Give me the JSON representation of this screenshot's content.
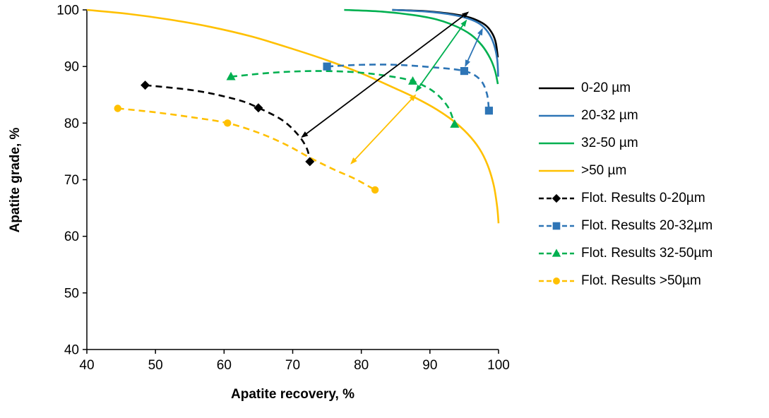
{
  "chart_data": {
    "type": "line",
    "xlabel": "Apatite recovery, %",
    "ylabel": "Apatite grade, %",
    "xlim": [
      40,
      100
    ],
    "ylim": [
      40,
      100
    ],
    "xticks": [
      40,
      50,
      60,
      70,
      80,
      90,
      100
    ],
    "yticks": [
      40,
      50,
      60,
      70,
      80,
      90,
      100
    ],
    "grid": false,
    "legend_position": "right",
    "series": [
      {
        "name": "0-20 µm",
        "color": "#000000",
        "line_style": "solid",
        "marker": "none",
        "points": [
          [
            84.5,
            100
          ],
          [
            89,
            99.8
          ],
          [
            92.5,
            99.4
          ],
          [
            95,
            98.9
          ],
          [
            96.8,
            98.2
          ],
          [
            98.2,
            97.2
          ],
          [
            99.1,
            95.8
          ],
          [
            99.6,
            94.2
          ],
          [
            99.9,
            91.6
          ]
        ]
      },
      {
        "name": "20-32 µm",
        "color": "#2E75B6",
        "line_style": "solid",
        "marker": "none",
        "points": [
          [
            84.5,
            100
          ],
          [
            89.5,
            99.7
          ],
          [
            93,
            99.2
          ],
          [
            95.5,
            98.5
          ],
          [
            97.3,
            97.5
          ],
          [
            98.5,
            96.0
          ],
          [
            99.3,
            94.0
          ],
          [
            99.8,
            91.3
          ],
          [
            99.95,
            88.2
          ]
        ]
      },
      {
        "name": "32-50 µm",
        "color": "#00B050",
        "line_style": "solid",
        "marker": "none",
        "points": [
          [
            77.5,
            100
          ],
          [
            83,
            99.7
          ],
          [
            87.5,
            99.1
          ],
          [
            91,
            98.3
          ],
          [
            93.8,
            97.1
          ],
          [
            96,
            95.6
          ],
          [
            97.6,
            93.7
          ],
          [
            98.8,
            91.4
          ],
          [
            99.5,
            89.2
          ],
          [
            99.9,
            86.9
          ]
        ]
      },
      {
        "name": ">50 µm",
        "color": "#FFC000",
        "line_style": "solid",
        "marker": "none",
        "points": [
          [
            40,
            100
          ],
          [
            46,
            99.3
          ],
          [
            52,
            98.3
          ],
          [
            58,
            97.0
          ],
          [
            64,
            95.3
          ],
          [
            70,
            93.1
          ],
          [
            75,
            91.1
          ],
          [
            80,
            88.8
          ],
          [
            85,
            86.1
          ],
          [
            88,
            84.4
          ],
          [
            91,
            82.4
          ],
          [
            93.5,
            80.3
          ],
          [
            95.5,
            78.1
          ],
          [
            97.2,
            75.5
          ],
          [
            98.4,
            72.6
          ],
          [
            99.3,
            69.0
          ],
          [
            99.8,
            65.2
          ],
          [
            100,
            62.3
          ]
        ]
      },
      {
        "name": "Flot. Results 0-20µm",
        "color": "#000000",
        "line_style": "dashed",
        "marker": "diamond",
        "points": [
          [
            48.5,
            86.7
          ],
          [
            56,
            85.7
          ],
          [
            62,
            84.1
          ],
          [
            65,
            82.7
          ],
          [
            68.5,
            80.5
          ],
          [
            70.8,
            77.9
          ],
          [
            72.1,
            75.4
          ],
          [
            72.5,
            73.2
          ]
        ],
        "marker_points": [
          [
            48.5,
            86.7
          ],
          [
            65,
            82.7
          ],
          [
            72.5,
            73.2
          ]
        ]
      },
      {
        "name": "Flot. Results 20-32µm",
        "color": "#2E75B6",
        "line_style": "dashed",
        "marker": "square",
        "points": [
          [
            75,
            90.0
          ],
          [
            80,
            90.3
          ],
          [
            85,
            90.3
          ],
          [
            90,
            89.9
          ],
          [
            95,
            89.2
          ],
          [
            97.3,
            87.7
          ],
          [
            98.3,
            85.2
          ],
          [
            98.6,
            82.2
          ]
        ],
        "marker_points": [
          [
            75,
            90.0
          ],
          [
            95,
            89.2
          ],
          [
            98.6,
            82.2
          ]
        ]
      },
      {
        "name": "Flot. Results 32-50µm",
        "color": "#00B050",
        "line_style": "dashed",
        "marker": "triangle",
        "points": [
          [
            61,
            88.2
          ],
          [
            67,
            88.9
          ],
          [
            73,
            89.2
          ],
          [
            79,
            89.0
          ],
          [
            84,
            88.3
          ],
          [
            87.5,
            87.4
          ],
          [
            90.5,
            85.6
          ],
          [
            92.6,
            82.9
          ],
          [
            93.6,
            79.8
          ]
        ],
        "marker_points": [
          [
            61,
            88.2
          ],
          [
            87.5,
            87.4
          ],
          [
            93.6,
            79.8
          ]
        ]
      },
      {
        "name": "Flot. Results >50µm",
        "color": "#FFC000",
        "line_style": "dashed",
        "marker": "circle",
        "points": [
          [
            44.5,
            82.6
          ],
          [
            50,
            81.9
          ],
          [
            55.5,
            81.0
          ],
          [
            60.5,
            80.0
          ],
          [
            65,
            78.3
          ],
          [
            69,
            76.2
          ],
          [
            72.5,
            73.9
          ],
          [
            76,
            71.8
          ],
          [
            79,
            70.2
          ],
          [
            82,
            68.2
          ]
        ],
        "marker_points": [
          [
            44.5,
            82.6
          ],
          [
            60.5,
            80.0
          ],
          [
            82,
            68.2
          ]
        ]
      }
    ],
    "arrows": [
      {
        "color": "#000000",
        "from": [
          71.2,
          77.4
        ],
        "to": [
          95.7,
          99.7
        ],
        "double_headed": true
      },
      {
        "color": "#2E75B6",
        "from": [
          95.1,
          89.9
        ],
        "to": [
          97.7,
          96.8
        ],
        "double_headed": true
      },
      {
        "color": "#00B050",
        "from": [
          87.9,
          85.5
        ],
        "to": [
          95.4,
          98.3
        ],
        "double_headed": true
      },
      {
        "color": "#FFC000",
        "from": [
          78.4,
          72.7
        ],
        "to": [
          88.0,
          85.1
        ],
        "double_headed": true
      }
    ]
  }
}
